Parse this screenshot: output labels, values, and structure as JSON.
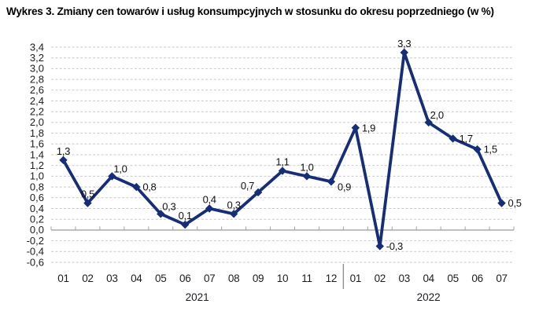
{
  "chart_data": {
    "type": "line",
    "title": "Wykres 3. Zmiany cen towarów i usług konsumpcyjnych w stosunku do okresu poprzedniego (w %)",
    "unit": "%",
    "x": [
      "01",
      "02",
      "03",
      "04",
      "05",
      "06",
      "07",
      "08",
      "09",
      "10",
      "11",
      "12",
      "01",
      "02",
      "03",
      "04",
      "05",
      "06",
      "07"
    ],
    "x_groups": [
      {
        "label": "2021",
        "count": 12
      },
      {
        "label": "2022",
        "count": 7
      }
    ],
    "values": [
      1.3,
      0.5,
      1.0,
      0.8,
      0.3,
      0.1,
      0.4,
      0.3,
      0.7,
      1.1,
      1.0,
      0.9,
      1.9,
      -0.3,
      3.3,
      2.0,
      1.7,
      1.5,
      0.5
    ],
    "point_labels": [
      "1,3",
      "0,5",
      "1,0",
      "0,8",
      "0,3",
      "0,1",
      "0,4",
      "0,3",
      "0,7",
      "1,1",
      "1,0",
      "0,9",
      "1,9",
      "-0,3",
      "3,3",
      "2,0",
      "1,7",
      "1,5",
      "0,5"
    ],
    "label_placement": [
      "above",
      "above",
      "above-right",
      "right",
      "above-right",
      "above",
      "above",
      "above",
      "above-left",
      "above",
      "above",
      "right-down",
      "right",
      "right",
      "above",
      "above-right",
      "right",
      "right",
      "right"
    ],
    "y_ticks": [
      "3,4",
      "3,2",
      "3,0",
      "2,8",
      "2,6",
      "2,4",
      "2,2",
      "2,0",
      "1,8",
      "1,6",
      "1,4",
      "1,2",
      "1,0",
      "0,8",
      "0,6",
      "0,4",
      "0,2",
      "0,0",
      "-0,2",
      "-0,4",
      "-0,6"
    ],
    "ylim": [
      -0.6,
      3.4
    ],
    "y_step": 0.2,
    "grid": "horizontal-dashed",
    "legend": "none",
    "marker": "diamond",
    "colors": {
      "series": "#162d78",
      "grid": "#c9c9c9",
      "axis": "#a3a3a3",
      "separator": "#8f8f8f",
      "tick_text": "#1b1b24",
      "point_label_text": "#111111",
      "title_text": "#000000",
      "background": "#ffffff"
    }
  }
}
